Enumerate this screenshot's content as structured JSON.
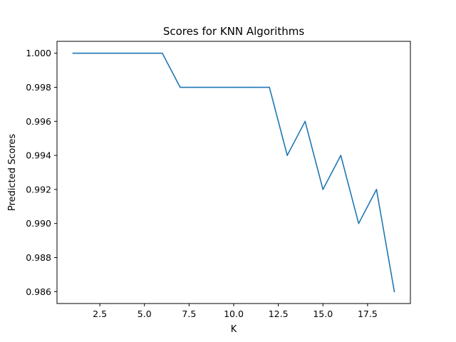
{
  "chart_data": {
    "type": "line",
    "title": "Scores for KNN Algorithms",
    "xlabel": "K",
    "ylabel": "Predicted Scores",
    "xlim": [
      0.1,
      19.9
    ],
    "ylim": [
      0.9853,
      1.0007
    ],
    "grid": false,
    "legend": "none",
    "x_ticks": [
      2.5,
      5.0,
      7.5,
      10.0,
      12.5,
      15.0,
      17.5
    ],
    "x_tick_labels": [
      "2.5",
      "5.0",
      "7.5",
      "10.0",
      "12.5",
      "15.0",
      "17.5"
    ],
    "y_ticks": [
      0.986,
      0.988,
      0.99,
      0.992,
      0.994,
      0.996,
      0.998,
      1.0
    ],
    "y_tick_labels": [
      "0.986",
      "0.988",
      "0.990",
      "0.992",
      "0.994",
      "0.996",
      "0.998",
      "1.000"
    ],
    "series": [
      {
        "color": "#1f77b4",
        "x": [
          1,
          2,
          3,
          4,
          5,
          6,
          7,
          8,
          9,
          10,
          11,
          12,
          13,
          14,
          15,
          16,
          17,
          18,
          19
        ],
        "values": [
          1.0,
          1.0,
          1.0,
          1.0,
          1.0,
          1.0,
          0.998,
          0.998,
          0.998,
          0.998,
          0.998,
          0.998,
          0.994,
          0.996,
          0.992,
          0.994,
          0.99,
          0.992,
          0.986
        ]
      }
    ]
  }
}
